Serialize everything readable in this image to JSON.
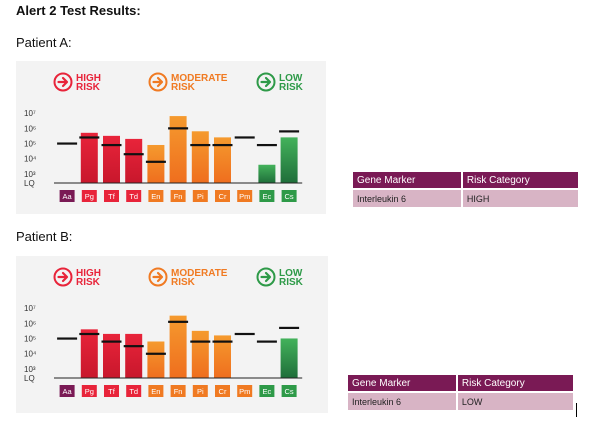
{
  "heading": "Alert 2 Test Results:",
  "legend": {
    "high": [
      "HIGH",
      "RISK"
    ],
    "moderate": [
      "MODERATE",
      "RISK"
    ],
    "low": [
      "LOW",
      "RISK"
    ]
  },
  "y_axis_labels": [
    "10⁷",
    "10⁶",
    "10⁵",
    "10⁴",
    "10³",
    "LQ"
  ],
  "categories": [
    "Aa",
    "Pg",
    "Tf",
    "Td",
    "En",
    "Fn",
    "Pi",
    "Cr",
    "Pm",
    "Ec",
    "Cs"
  ],
  "category_colors": [
    "#7a1a55",
    "#e8243a",
    "#e8243a",
    "#e8243a",
    "#f07a22",
    "#f07a22",
    "#f07a22",
    "#f07a22",
    "#f07a22",
    "#2e9a48",
    "#2e9a48"
  ],
  "category_risk": [
    "high",
    "high",
    "high",
    "high",
    "moderate",
    "moderate",
    "moderate",
    "moderate",
    "moderate",
    "low",
    "low"
  ],
  "colors": {
    "high": "#e8243a",
    "moderate": "#f07a22",
    "low": "#2e9a48",
    "table_header": "#7a1a55",
    "table_row": "#d8b4c5"
  },
  "patients": [
    {
      "label": "Patient A:",
      "chart_data": {
        "type": "bar",
        "categories": [
          "Aa",
          "Pg",
          "Tf",
          "Td",
          "En",
          "Fn",
          "Pi",
          "Cr",
          "Pm",
          "Ec",
          "Cs"
        ],
        "y_scale": "log",
        "values": [
          null,
          5.7,
          5.5,
          5.3,
          4.9,
          6.8,
          5.8,
          5.4,
          null,
          3.6,
          5.4
        ],
        "threshold_values": [
          5.0,
          5.4,
          4.9,
          4.3,
          3.8,
          6.0,
          4.9,
          4.9,
          5.4,
          4.9,
          5.8
        ],
        "ylabel_ticks": [
          "10⁷",
          "10⁶",
          "10⁵",
          "10⁴",
          "10³",
          "LQ"
        ]
      },
      "table": {
        "headers": [
          "Gene Marker",
          "Risk Category"
        ],
        "rows": [
          [
            "Interleukin 6",
            "HIGH"
          ]
        ]
      }
    },
    {
      "label": "Patient B:",
      "chart_data": {
        "type": "bar",
        "categories": [
          "Aa",
          "Pg",
          "Tf",
          "Td",
          "En",
          "Fn",
          "Pi",
          "Cr",
          "Pm",
          "Ec",
          "Cs"
        ],
        "y_scale": "log",
        "values": [
          null,
          5.6,
          5.3,
          5.3,
          4.8,
          6.5,
          5.5,
          5.2,
          null,
          null,
          5.0
        ],
        "threshold_values": [
          5.0,
          5.3,
          4.8,
          4.5,
          4.0,
          6.1,
          4.8,
          4.8,
          5.3,
          4.8,
          5.7
        ],
        "ylabel_ticks": [
          "10⁷",
          "10⁶",
          "10⁵",
          "10⁴",
          "10³",
          "LQ"
        ]
      },
      "table": {
        "headers": [
          "Gene Marker",
          "Risk Category"
        ],
        "rows": [
          [
            "Interleukin 6",
            "LOW"
          ]
        ]
      }
    }
  ]
}
